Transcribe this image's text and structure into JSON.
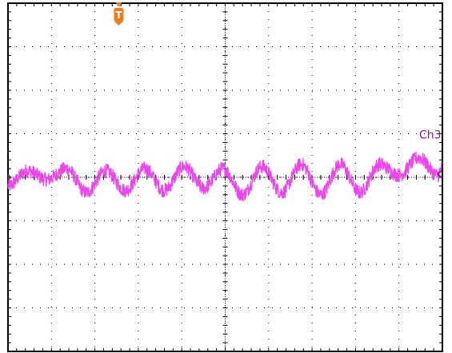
{
  "chart_data": {
    "type": "line",
    "title": "",
    "xlabel": "",
    "ylabel": "",
    "grid": true,
    "grid_divisions": {
      "horizontal": 10,
      "vertical": 8
    },
    "xlim": [
      0,
      10
    ],
    "ylim": [
      -4,
      4
    ],
    "trigger_marker": {
      "label": "T",
      "x_div": 2.55,
      "color": "#ee7a1a"
    },
    "series": [
      {
        "name": "Ch3",
        "color": "#ee44ee",
        "label_color": "#8b1a8b",
        "reference_level_div": 0.0,
        "x": [
          0.0,
          0.45,
          0.9,
          1.35,
          1.8,
          2.25,
          2.7,
          3.15,
          3.6,
          4.05,
          4.5,
          4.95,
          5.4,
          5.85,
          6.3,
          6.75,
          7.2,
          7.65,
          8.1,
          8.55,
          9.0,
          9.45,
          9.9,
          10.0
        ],
        "y": [
          -0.2,
          0.15,
          -0.05,
          0.2,
          -0.35,
          0.15,
          -0.3,
          0.2,
          -0.3,
          0.25,
          -0.25,
          0.2,
          -0.4,
          0.25,
          -0.35,
          0.3,
          -0.4,
          0.3,
          -0.35,
          0.3,
          0.05,
          0.45,
          0.05,
          0.25
        ]
      }
    ]
  },
  "colors": {
    "background": "#ffffff",
    "border": "#000000",
    "grid": "#000000",
    "trace": "#ee44ee",
    "channel_label": "#8b1a8b",
    "trigger": "#ee7a1a"
  }
}
